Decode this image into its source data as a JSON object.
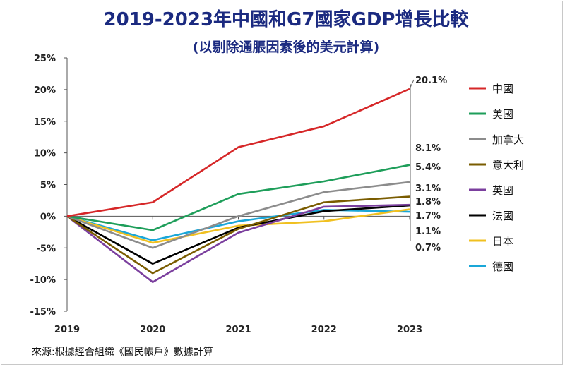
{
  "chart_data": {
    "type": "line",
    "title": "2019-2023年中國和G7國家GDP增長比較",
    "subtitle": "(以剔除通脹因素後的美元計算)",
    "source": "來源:根據經合組織《國民帳戶》數據計算",
    "x": [
      "2019",
      "2020",
      "2021",
      "2022",
      "2023"
    ],
    "ylim": [
      -15,
      25
    ],
    "yticks": [
      "25%",
      "20%",
      "15%",
      "10%",
      "5%",
      "0%",
      "-5%",
      "-10%",
      "-15%"
    ],
    "ytick_values": [
      25,
      20,
      15,
      10,
      5,
      0,
      -5,
      -10,
      -15
    ],
    "series": [
      {
        "name": "中國",
        "color": "#d62728",
        "values": [
          0,
          2.2,
          10.9,
          14.2,
          20.1
        ]
      },
      {
        "name": "美國",
        "color": "#1e9e5a",
        "values": [
          0,
          -2.2,
          3.5,
          5.5,
          8.1
        ]
      },
      {
        "name": "加拿大",
        "color": "#8c8c8c",
        "values": [
          0,
          -5.0,
          0.0,
          3.8,
          5.4
        ]
      },
      {
        "name": "意大利",
        "color": "#7a5c00",
        "values": [
          0,
          -9.0,
          -2.0,
          2.2,
          3.1
        ]
      },
      {
        "name": "英國",
        "color": "#7b3f9e",
        "values": [
          0,
          -10.4,
          -2.6,
          1.5,
          1.8
        ]
      },
      {
        "name": "法國",
        "color": "#000000",
        "values": [
          0,
          -7.5,
          -1.8,
          0.8,
          1.7
        ]
      },
      {
        "name": "日本",
        "color": "#f0c020",
        "values": [
          0,
          -4.2,
          -1.5,
          -0.8,
          1.1
        ]
      },
      {
        "name": "德國",
        "color": "#1aa7d8",
        "values": [
          0,
          -3.8,
          -0.8,
          1.0,
          0.7
        ]
      }
    ],
    "end_labels": [
      "20.1%",
      "8.1%",
      "5.4%",
      "3.1%",
      "1.8%",
      "1.7%",
      "1.1%",
      "0.7%"
    ]
  }
}
